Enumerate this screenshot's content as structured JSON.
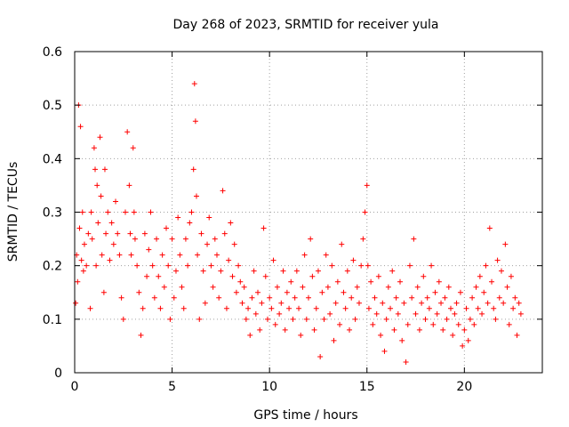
{
  "chart_data": {
    "type": "scatter",
    "title": "Day 268 of 2023, SRMTID for receiver yula",
    "xlabel": "GPS time / hours",
    "ylabel": "SRMTID / TECUs",
    "xlim": [
      0,
      24
    ],
    "ylim": [
      0,
      0.6
    ],
    "xticks": [
      0,
      5,
      10,
      15,
      20
    ],
    "yticks": [
      0,
      0.1,
      0.2,
      0.3,
      0.4,
      0.5,
      0.6
    ],
    "xtick_labels": [
      "0",
      "5",
      "10",
      "15",
      "20"
    ],
    "ytick_labels": [
      "0",
      "0.1",
      "0.2",
      "0.3",
      "0.4",
      "0.5",
      "0.6"
    ],
    "grid": true,
    "marker": "+",
    "color": "#ff0000",
    "series": [
      {
        "name": "SRMTID",
        "points": [
          [
            0.05,
            0.13
          ],
          [
            0.1,
            0.22
          ],
          [
            0.15,
            0.17
          ],
          [
            0.2,
            0.5
          ],
          [
            0.25,
            0.27
          ],
          [
            0.3,
            0.46
          ],
          [
            0.35,
            0.21
          ],
          [
            0.4,
            0.3
          ],
          [
            0.45,
            0.19
          ],
          [
            0.5,
            0.24
          ],
          [
            0.6,
            0.2
          ],
          [
            0.7,
            0.26
          ],
          [
            0.8,
            0.12
          ],
          [
            0.85,
            0.3
          ],
          [
            0.9,
            0.25
          ],
          [
            1.0,
            0.42
          ],
          [
            1.05,
            0.38
          ],
          [
            1.1,
            0.2
          ],
          [
            1.15,
            0.35
          ],
          [
            1.2,
            0.28
          ],
          [
            1.3,
            0.44
          ],
          [
            1.35,
            0.33
          ],
          [
            1.4,
            0.22
          ],
          [
            1.5,
            0.15
          ],
          [
            1.55,
            0.38
          ],
          [
            1.6,
            0.26
          ],
          [
            1.7,
            0.3
          ],
          [
            1.8,
            0.21
          ],
          [
            1.9,
            0.28
          ],
          [
            2.0,
            0.24
          ],
          [
            2.1,
            0.32
          ],
          [
            2.2,
            0.26
          ],
          [
            2.3,
            0.22
          ],
          [
            2.4,
            0.14
          ],
          [
            2.5,
            0.1
          ],
          [
            2.6,
            0.3
          ],
          [
            2.7,
            0.45
          ],
          [
            2.8,
            0.35
          ],
          [
            2.85,
            0.26
          ],
          [
            2.9,
            0.22
          ],
          [
            3.0,
            0.42
          ],
          [
            3.05,
            0.3
          ],
          [
            3.1,
            0.25
          ],
          [
            3.2,
            0.2
          ],
          [
            3.3,
            0.15
          ],
          [
            3.4,
            0.07
          ],
          [
            3.5,
            0.12
          ],
          [
            3.6,
            0.26
          ],
          [
            3.7,
            0.18
          ],
          [
            3.8,
            0.23
          ],
          [
            3.9,
            0.3
          ],
          [
            4.0,
            0.2
          ],
          [
            4.1,
            0.14
          ],
          [
            4.2,
            0.25
          ],
          [
            4.3,
            0.18
          ],
          [
            4.4,
            0.12
          ],
          [
            4.5,
            0.22
          ],
          [
            4.6,
            0.16
          ],
          [
            4.7,
            0.27
          ],
          [
            4.8,
            0.2
          ],
          [
            4.9,
            0.1
          ],
          [
            5.0,
            0.25
          ],
          [
            5.1,
            0.14
          ],
          [
            5.2,
            0.19
          ],
          [
            5.3,
            0.29
          ],
          [
            5.4,
            0.22
          ],
          [
            5.5,
            0.16
          ],
          [
            5.6,
            0.12
          ],
          [
            5.7,
            0.25
          ],
          [
            5.8,
            0.2
          ],
          [
            5.9,
            0.28
          ],
          [
            6.0,
            0.3
          ],
          [
            6.1,
            0.38
          ],
          [
            6.15,
            0.54
          ],
          [
            6.2,
            0.47
          ],
          [
            6.25,
            0.33
          ],
          [
            6.3,
            0.22
          ],
          [
            6.4,
            0.1
          ],
          [
            6.5,
            0.26
          ],
          [
            6.6,
            0.19
          ],
          [
            6.7,
            0.13
          ],
          [
            6.8,
            0.24
          ],
          [
            6.9,
            0.29
          ],
          [
            7.0,
            0.2
          ],
          [
            7.1,
            0.16
          ],
          [
            7.2,
            0.25
          ],
          [
            7.3,
            0.22
          ],
          [
            7.4,
            0.14
          ],
          [
            7.5,
            0.19
          ],
          [
            7.6,
            0.34
          ],
          [
            7.7,
            0.26
          ],
          [
            7.8,
            0.12
          ],
          [
            7.9,
            0.21
          ],
          [
            8.0,
            0.28
          ],
          [
            8.1,
            0.18
          ],
          [
            8.2,
            0.24
          ],
          [
            8.3,
            0.15
          ],
          [
            8.4,
            0.2
          ],
          [
            8.5,
            0.17
          ],
          [
            8.6,
            0.13
          ],
          [
            8.7,
            0.16
          ],
          [
            8.8,
            0.1
          ],
          [
            8.9,
            0.12
          ],
          [
            9.0,
            0.07
          ],
          [
            9.1,
            0.14
          ],
          [
            9.2,
            0.19
          ],
          [
            9.3,
            0.11
          ],
          [
            9.4,
            0.15
          ],
          [
            9.5,
            0.08
          ],
          [
            9.6,
            0.13
          ],
          [
            9.7,
            0.27
          ],
          [
            9.8,
            0.18
          ],
          [
            9.9,
            0.1
          ],
          [
            10.0,
            0.14
          ],
          [
            10.1,
            0.12
          ],
          [
            10.2,
            0.21
          ],
          [
            10.3,
            0.09
          ],
          [
            10.4,
            0.16
          ],
          [
            10.5,
            0.11
          ],
          [
            10.6,
            0.13
          ],
          [
            10.7,
            0.19
          ],
          [
            10.8,
            0.08
          ],
          [
            10.9,
            0.15
          ],
          [
            11.0,
            0.12
          ],
          [
            11.1,
            0.17
          ],
          [
            11.2,
            0.1
          ],
          [
            11.3,
            0.14
          ],
          [
            11.4,
            0.19
          ],
          [
            11.5,
            0.12
          ],
          [
            11.6,
            0.07
          ],
          [
            11.7,
            0.16
          ],
          [
            11.8,
            0.22
          ],
          [
            11.9,
            0.1
          ],
          [
            12.0,
            0.14
          ],
          [
            12.1,
            0.25
          ],
          [
            12.2,
            0.18
          ],
          [
            12.3,
            0.08
          ],
          [
            12.4,
            0.12
          ],
          [
            12.5,
            0.19
          ],
          [
            12.6,
            0.03
          ],
          [
            12.7,
            0.15
          ],
          [
            12.8,
            0.1
          ],
          [
            12.9,
            0.22
          ],
          [
            13.0,
            0.16
          ],
          [
            13.1,
            0.11
          ],
          [
            13.2,
            0.2
          ],
          [
            13.3,
            0.06
          ],
          [
            13.4,
            0.13
          ],
          [
            13.5,
            0.17
          ],
          [
            13.6,
            0.09
          ],
          [
            13.7,
            0.24
          ],
          [
            13.8,
            0.15
          ],
          [
            13.9,
            0.12
          ],
          [
            14.0,
            0.19
          ],
          [
            14.1,
            0.08
          ],
          [
            14.2,
            0.14
          ],
          [
            14.3,
            0.21
          ],
          [
            14.4,
            0.1
          ],
          [
            14.5,
            0.16
          ],
          [
            14.6,
            0.13
          ],
          [
            14.7,
            0.2
          ],
          [
            14.8,
            0.25
          ],
          [
            14.9,
            0.3
          ],
          [
            15.0,
            0.35
          ],
          [
            15.05,
            0.2
          ],
          [
            15.1,
            0.12
          ],
          [
            15.2,
            0.17
          ],
          [
            15.3,
            0.09
          ],
          [
            15.4,
            0.14
          ],
          [
            15.5,
            0.11
          ],
          [
            15.6,
            0.18
          ],
          [
            15.7,
            0.07
          ],
          [
            15.8,
            0.13
          ],
          [
            15.9,
            0.04
          ],
          [
            16.0,
            0.1
          ],
          [
            16.1,
            0.16
          ],
          [
            16.2,
            0.12
          ],
          [
            16.3,
            0.19
          ],
          [
            16.4,
            0.08
          ],
          [
            16.5,
            0.14
          ],
          [
            16.6,
            0.11
          ],
          [
            16.7,
            0.17
          ],
          [
            16.8,
            0.06
          ],
          [
            16.9,
            0.13
          ],
          [
            17.0,
            0.02
          ],
          [
            17.1,
            0.09
          ],
          [
            17.2,
            0.2
          ],
          [
            17.3,
            0.14
          ],
          [
            17.4,
            0.25
          ],
          [
            17.5,
            0.11
          ],
          [
            17.6,
            0.16
          ],
          [
            17.7,
            0.08
          ],
          [
            17.8,
            0.13
          ],
          [
            17.9,
            0.18
          ],
          [
            18.0,
            0.1
          ],
          [
            18.1,
            0.14
          ],
          [
            18.2,
            0.12
          ],
          [
            18.3,
            0.2
          ],
          [
            18.4,
            0.09
          ],
          [
            18.5,
            0.15
          ],
          [
            18.6,
            0.11
          ],
          [
            18.7,
            0.17
          ],
          [
            18.8,
            0.13
          ],
          [
            18.9,
            0.08
          ],
          [
            19.0,
            0.14
          ],
          [
            19.1,
            0.1
          ],
          [
            19.2,
            0.16
          ],
          [
            19.3,
            0.12
          ],
          [
            19.4,
            0.07
          ],
          [
            19.5,
            0.11
          ],
          [
            19.6,
            0.13
          ],
          [
            19.7,
            0.09
          ],
          [
            19.8,
            0.15
          ],
          [
            19.9,
            0.05
          ],
          [
            20.0,
            0.08
          ],
          [
            20.1,
            0.12
          ],
          [
            20.2,
            0.06
          ],
          [
            20.3,
            0.1
          ],
          [
            20.4,
            0.14
          ],
          [
            20.5,
            0.09
          ],
          [
            20.6,
            0.16
          ],
          [
            20.7,
            0.12
          ],
          [
            20.8,
            0.18
          ],
          [
            20.9,
            0.11
          ],
          [
            21.0,
            0.15
          ],
          [
            21.1,
            0.2
          ],
          [
            21.2,
            0.13
          ],
          [
            21.3,
            0.27
          ],
          [
            21.4,
            0.17
          ],
          [
            21.5,
            0.12
          ],
          [
            21.6,
            0.1
          ],
          [
            21.7,
            0.21
          ],
          [
            21.8,
            0.14
          ],
          [
            21.9,
            0.19
          ],
          [
            22.0,
            0.13
          ],
          [
            22.1,
            0.24
          ],
          [
            22.2,
            0.16
          ],
          [
            22.3,
            0.09
          ],
          [
            22.4,
            0.18
          ],
          [
            22.5,
            0.12
          ],
          [
            22.6,
            0.14
          ],
          [
            22.7,
            0.07
          ],
          [
            22.8,
            0.13
          ],
          [
            22.9,
            0.11
          ]
        ]
      }
    ]
  }
}
